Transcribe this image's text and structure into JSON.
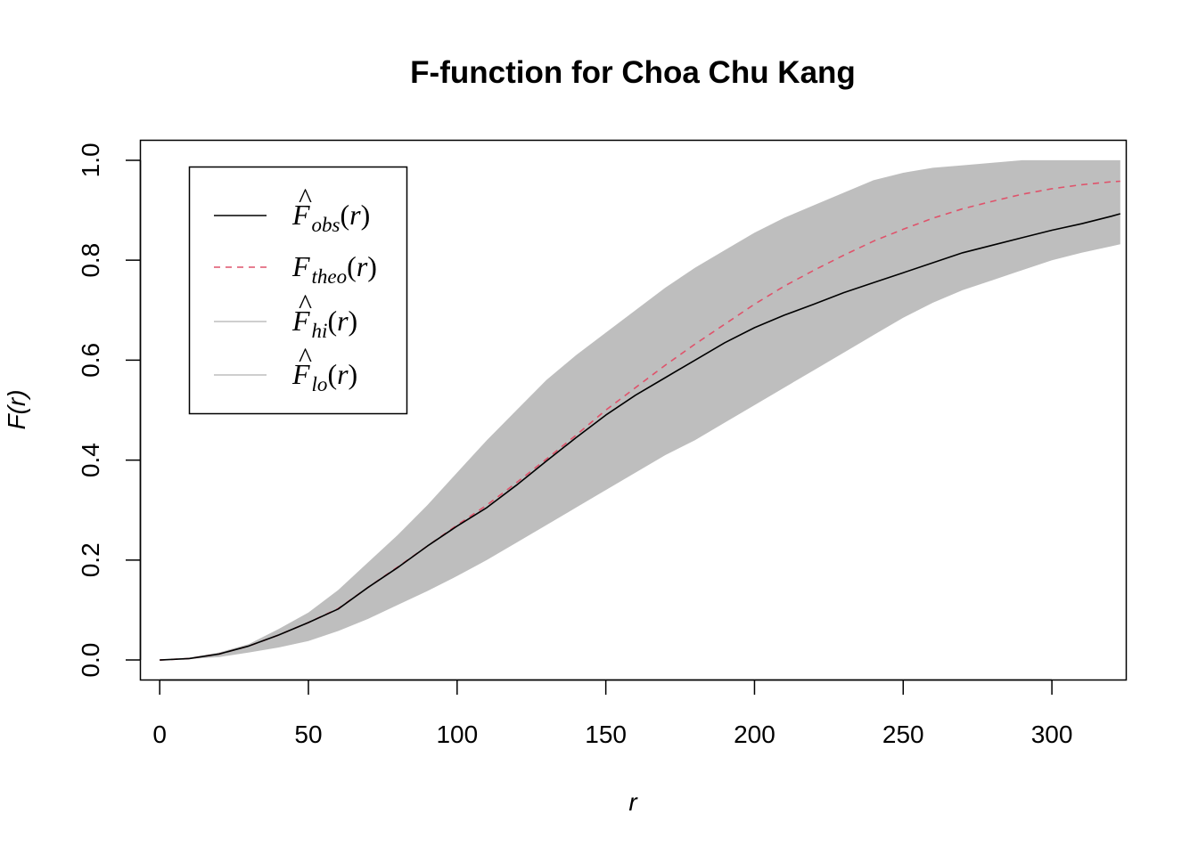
{
  "chart_data": {
    "type": "line",
    "title": "F-function for Choa Chu Kang",
    "xlabel": "r",
    "ylabel": "F(r)",
    "xlim": [
      -6.5,
      325
    ],
    "ylim": [
      -0.04,
      1.04
    ],
    "xticks": [
      0,
      50,
      100,
      150,
      200,
      250,
      300
    ],
    "yticks": [
      0.0,
      0.2,
      0.4,
      0.6,
      0.8,
      1.0
    ],
    "xtick_labels": [
      "0",
      "50",
      "100",
      "150",
      "200",
      "250",
      "300"
    ],
    "ytick_labels": [
      "0.0",
      "0.2",
      "0.4",
      "0.6",
      "0.8",
      "1.0"
    ],
    "grid": false,
    "legend_position": "top-left",
    "x": [
      0,
      10,
      20,
      30,
      40,
      50,
      60,
      70,
      80,
      90,
      100,
      110,
      120,
      130,
      140,
      150,
      160,
      170,
      180,
      190,
      200,
      210,
      220,
      230,
      240,
      250,
      260,
      270,
      280,
      290,
      300,
      310,
      320,
      323
    ],
    "series": [
      {
        "key": "obs",
        "name_main": "F",
        "name_sub": "obs",
        "hat": true,
        "color": "#000000",
        "dash": "none",
        "values": [
          0.0,
          0.003,
          0.012,
          0.028,
          0.05,
          0.075,
          0.102,
          0.145,
          0.185,
          0.228,
          0.268,
          0.305,
          0.35,
          0.398,
          0.445,
          0.49,
          0.53,
          0.565,
          0.6,
          0.635,
          0.665,
          0.69,
          0.712,
          0.735,
          0.755,
          0.775,
          0.795,
          0.815,
          0.83,
          0.845,
          0.86,
          0.873,
          0.888,
          0.893
        ]
      },
      {
        "key": "theo",
        "name_main": "F",
        "name_sub": "theo",
        "hat": false,
        "color": "#df536b",
        "dash": "7,6",
        "values": [
          0.0,
          0.003,
          0.012,
          0.028,
          0.05,
          0.075,
          0.103,
          0.145,
          0.186,
          0.228,
          0.27,
          0.31,
          0.355,
          0.402,
          0.45,
          0.5,
          0.545,
          0.59,
          0.632,
          0.672,
          0.712,
          0.748,
          0.78,
          0.81,
          0.838,
          0.862,
          0.884,
          0.903,
          0.918,
          0.932,
          0.943,
          0.951,
          0.957,
          0.958
        ]
      },
      {
        "key": "hi",
        "name_main": "F",
        "name_sub": "hi",
        "hat": true,
        "color": "#bebebe",
        "dash": "none",
        "values": [
          0.0,
          0.005,
          0.015,
          0.032,
          0.062,
          0.095,
          0.14,
          0.195,
          0.25,
          0.31,
          0.375,
          0.44,
          0.5,
          0.56,
          0.61,
          0.655,
          0.7,
          0.745,
          0.785,
          0.82,
          0.855,
          0.885,
          0.91,
          0.935,
          0.96,
          0.975,
          0.985,
          0.99,
          0.995,
          1.0,
          1.0,
          1.0,
          1.0,
          1.0
        ]
      },
      {
        "key": "lo",
        "name_main": "F",
        "name_sub": "lo",
        "hat": true,
        "color": "#bebebe",
        "dash": "none",
        "values": [
          0.0,
          0.002,
          0.006,
          0.015,
          0.025,
          0.038,
          0.058,
          0.082,
          0.11,
          0.138,
          0.168,
          0.2,
          0.235,
          0.27,
          0.305,
          0.34,
          0.375,
          0.41,
          0.44,
          0.475,
          0.51,
          0.545,
          0.58,
          0.615,
          0.65,
          0.685,
          0.715,
          0.74,
          0.76,
          0.78,
          0.8,
          0.815,
          0.828,
          0.832
        ]
      }
    ]
  }
}
